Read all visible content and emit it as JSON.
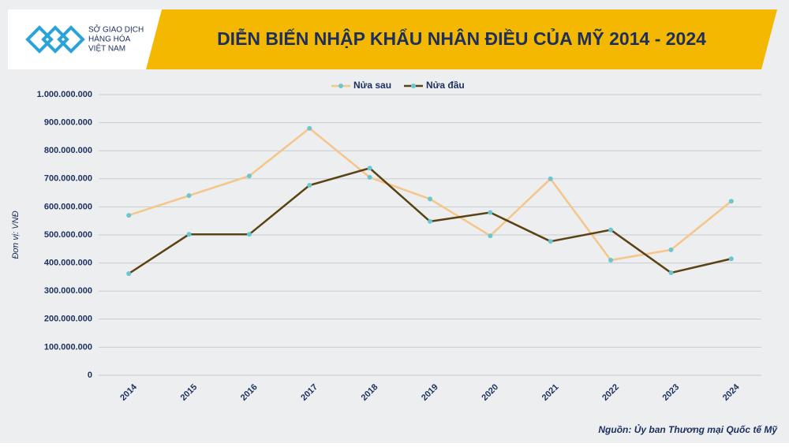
{
  "logo": {
    "lines": [
      "SỞ GIAO DỊCH",
      "HÀNG HÓA",
      "VIỆT NAM"
    ]
  },
  "chart_data": {
    "type": "line",
    "title": "DIỄN BIẾN NHẬP KHẨU NHÂN ĐIỀU CỦA MỸ 2014 - 2024",
    "y_axis_label": "Đơn vị: VNĐ",
    "source": "Nguồn: Ủy ban Thương mại Quốc tế Mỹ",
    "categories": [
      "2014",
      "2015",
      "2016",
      "2017",
      "2018",
      "2019",
      "2020",
      "2021",
      "2022",
      "2023",
      "2024"
    ],
    "series": [
      {
        "name": "Nửa sau",
        "color": "#f5c58a",
        "values": [
          570000000,
          640000000,
          710000000,
          880000000,
          705000000,
          628000000,
          497000000,
          700000000,
          410000000,
          447000000,
          620000000
        ]
      },
      {
        "name": "Nửa đầu",
        "color": "#5a4212",
        "values": [
          362000000,
          502000000,
          502000000,
          677000000,
          738000000,
          548000000,
          580000000,
          477000000,
          518000000,
          365000000,
          415000000
        ]
      }
    ],
    "marker_color": "#6cc6cf",
    "ylim": [
      0,
      1000000000
    ],
    "yticks": [
      0,
      {
        "value": 100000000,
        "label": "100.000.000"
      },
      {
        "value": 200000000,
        "label": "200.000.000"
      },
      {
        "value": 300000000,
        "label": "300.000.000"
      },
      {
        "value": 400000000,
        "label": "400.000.000"
      },
      {
        "value": 500000000,
        "label": "500.000.000"
      },
      {
        "value": 600000000,
        "label": "600.000.000"
      },
      {
        "value": 700000000,
        "label": "700.000.000"
      },
      {
        "value": 800000000,
        "label": "800.000.000"
      },
      {
        "value": 900000000,
        "label": "900.000.000"
      },
      {
        "value": 1000000000,
        "label": "1.000.000.000"
      }
    ],
    "grid": true,
    "legend": "top"
  }
}
